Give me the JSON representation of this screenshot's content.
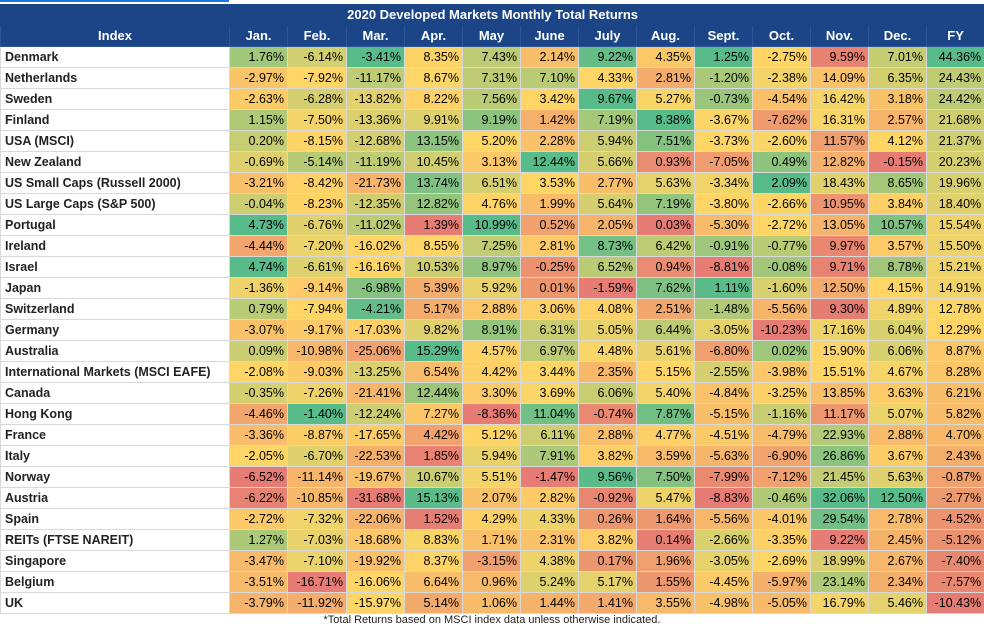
{
  "title": "2020 Developed Markets Monthly Total Returns",
  "headers": [
    "Index",
    "Jan.",
    "Feb.",
    "Mar.",
    "Apr.",
    "May",
    "June",
    "July",
    "Aug.",
    "Sept.",
    "Oct.",
    "Nov.",
    "Dec.",
    "FY"
  ],
  "rows": [
    {
      "name": "Denmark",
      "values": [
        1.76,
        -6.14,
        -3.41,
        8.35,
        7.43,
        2.14,
        9.22,
        4.35,
        1.25,
        -2.75,
        9.59,
        7.01,
        44.36
      ]
    },
    {
      "name": "Netherlands",
      "values": [
        -2.97,
        -7.92,
        -11.17,
        8.67,
        7.31,
        7.1,
        4.33,
        2.81,
        -1.2,
        -2.38,
        14.09,
        6.35,
        24.43
      ]
    },
    {
      "name": "Sweden",
      "values": [
        -2.63,
        -6.28,
        -13.82,
        8.22,
        7.56,
        3.42,
        9.67,
        5.27,
        -0.73,
        -4.54,
        16.42,
        3.18,
        24.42
      ]
    },
    {
      "name": "Finland",
      "values": [
        1.15,
        -7.5,
        -13.36,
        9.91,
        9.19,
        1.42,
        7.19,
        8.38,
        -3.67,
        -7.62,
        16.31,
        2.57,
        21.68
      ]
    },
    {
      "name": "USA (MSCI)",
      "values": [
        0.2,
        -8.15,
        -12.68,
        13.15,
        5.2,
        2.28,
        5.94,
        7.51,
        -3.73,
        -2.6,
        11.57,
        4.12,
        21.37
      ]
    },
    {
      "name": "New Zealand",
      "values": [
        -0.69,
        -5.14,
        -11.19,
        10.45,
        3.13,
        12.44,
        5.66,
        0.93,
        -7.05,
        0.49,
        12.82,
        -0.15,
        20.23
      ]
    },
    {
      "name": "US Small Caps (Russell 2000)",
      "values": [
        -3.21,
        -8.42,
        -21.73,
        13.74,
        6.51,
        3.53,
        2.77,
        5.63,
        -3.34,
        2.09,
        18.43,
        8.65,
        19.96
      ]
    },
    {
      "name": "US Large Caps (S&P 500)",
      "values": [
        -0.04,
        -8.23,
        -12.35,
        12.82,
        4.76,
        1.99,
        5.64,
        7.19,
        -3.8,
        -2.66,
        10.95,
        3.84,
        18.4
      ]
    },
    {
      "name": "Portugal",
      "values": [
        4.73,
        -6.76,
        -11.02,
        1.39,
        10.99,
        0.52,
        2.05,
        0.03,
        -5.3,
        -2.72,
        13.05,
        10.57,
        15.54
      ]
    },
    {
      "name": "Ireland",
      "values": [
        -4.44,
        -7.2,
        -16.02,
        8.55,
        7.25,
        2.81,
        8.73,
        6.42,
        -0.91,
        -0.77,
        9.97,
        3.57,
        15.5
      ]
    },
    {
      "name": "Israel",
      "values": [
        4.74,
        -6.61,
        -16.16,
        10.53,
        8.97,
        -0.25,
        6.52,
        0.94,
        -8.81,
        -0.08,
        9.71,
        8.78,
        15.21
      ]
    },
    {
      "name": "Japan",
      "values": [
        -1.36,
        -9.14,
        -6.98,
        5.39,
        5.92,
        0.01,
        -1.59,
        7.62,
        1.11,
        -1.6,
        12.5,
        4.15,
        14.91
      ]
    },
    {
      "name": "Switzerland",
      "values": [
        0.79,
        -7.94,
        -4.21,
        5.17,
        2.88,
        3.06,
        4.08,
        2.51,
        -1.48,
        -5.56,
        9.3,
        4.89,
        12.78
      ]
    },
    {
      "name": "Germany",
      "values": [
        -3.07,
        -9.17,
        -17.03,
        9.82,
        8.91,
        6.31,
        5.05,
        6.44,
        -3.05,
        -10.23,
        17.16,
        6.04,
        12.29
      ]
    },
    {
      "name": "Australia",
      "values": [
        0.09,
        -10.98,
        -25.06,
        15.29,
        4.57,
        6.97,
        4.48,
        5.61,
        -6.8,
        0.02,
        15.9,
        6.06,
        8.87
      ]
    },
    {
      "name": "International Markets (MSCI EAFE)",
      "values": [
        -2.08,
        -9.03,
        -13.25,
        6.54,
        4.42,
        3.44,
        2.35,
        5.15,
        -2.55,
        -3.98,
        15.51,
        4.67,
        8.28
      ]
    },
    {
      "name": "Canada",
      "values": [
        -0.35,
        -7.26,
        -21.41,
        12.44,
        3.3,
        3.69,
        6.06,
        5.4,
        -4.84,
        -3.25,
        13.85,
        3.63,
        6.21
      ]
    },
    {
      "name": "Hong Kong",
      "values": [
        -4.46,
        -1.4,
        -12.24,
        7.27,
        -8.36,
        11.04,
        -0.74,
        7.87,
        -5.15,
        -1.16,
        11.17,
        5.07,
        5.82
      ]
    },
    {
      "name": "France",
      "values": [
        -3.36,
        -8.87,
        -17.65,
        4.42,
        5.12,
        6.11,
        2.88,
        4.77,
        -4.51,
        -4.79,
        22.93,
        2.88,
        4.7
      ]
    },
    {
      "name": "Italy",
      "values": [
        -2.05,
        -6.7,
        -22.53,
        1.85,
        5.94,
        7.91,
        3.82,
        3.59,
        -5.63,
        -6.9,
        26.86,
        3.67,
        2.43
      ]
    },
    {
      "name": "Norway",
      "values": [
        -6.52,
        -11.14,
        -19.67,
        10.67,
        5.51,
        -1.47,
        9.56,
        7.5,
        -7.99,
        -7.12,
        21.45,
        5.63,
        -0.87
      ]
    },
    {
      "name": "Austria",
      "values": [
        -6.22,
        -10.85,
        -31.68,
        15.13,
        2.07,
        2.82,
        -0.92,
        5.47,
        -8.83,
        -0.46,
        32.06,
        12.5,
        -2.77
      ]
    },
    {
      "name": "Spain",
      "values": [
        -2.72,
        -7.32,
        -22.06,
        1.52,
        4.29,
        4.33,
        0.26,
        1.64,
        -5.56,
        -4.01,
        29.54,
        2.78,
        -4.52
      ]
    },
    {
      "name": "REITs (FTSE NAREIT)",
      "values": [
        1.27,
        -7.03,
        -18.68,
        8.83,
        1.71,
        2.31,
        3.82,
        0.14,
        -2.66,
        -3.35,
        9.22,
        2.45,
        -5.12
      ]
    },
    {
      "name": "Singapore",
      "values": [
        -3.47,
        -7.1,
        -19.92,
        8.37,
        -3.15,
        4.38,
        0.17,
        1.96,
        -3.05,
        -2.69,
        18.99,
        2.67,
        -7.4
      ]
    },
    {
      "name": "Belgium",
      "values": [
        -3.51,
        -16.71,
        -16.06,
        6.64,
        0.96,
        5.24,
        5.17,
        1.55,
        -4.45,
        -5.97,
        23.14,
        2.34,
        -7.57
      ]
    },
    {
      "name": "UK",
      "values": [
        -3.79,
        -11.92,
        -15.97,
        5.14,
        1.06,
        1.44,
        1.41,
        3.55,
        -4.98,
        -5.05,
        16.79,
        5.46,
        -10.43
      ]
    }
  ],
  "footnote": "*Total Returns based on MSCI index data unless otherwise indicated.",
  "colors": {
    "header_bg": "#1c4587",
    "header_text": "#ffffff",
    "scale_low": "#e67c73",
    "scale_mid": "#ffd666",
    "scale_high": "#57bb8a"
  }
}
